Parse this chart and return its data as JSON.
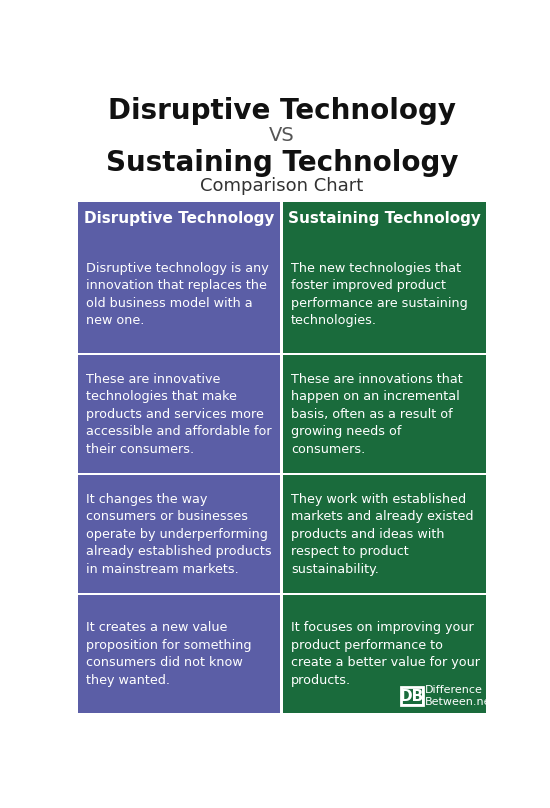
{
  "title_line1": "Disruptive Technology",
  "title_vs": "VS",
  "title_line2": "Sustaining Technology",
  "subtitle": "Comparison Chart",
  "col1_header": "Disruptive Technology",
  "col2_header": "Sustaining Technology",
  "col1_color": "#5b5ea6",
  "col2_color": "#1a6b3c",
  "header_text_color": "#ffffff",
  "body_text_color": "#ffffff",
  "bg_color": "#ffffff",
  "title_color": "#111111",
  "vs_color": "#555555",
  "subtitle_color": "#333333",
  "divider_color": "#ffffff",
  "rows": [
    {
      "left": "Disruptive technology is any\ninnovation that replaces the\nold business model with a\nnew one.",
      "right": "The new technologies that\nfoster improved product\nperformance are sustaining\ntechnologies."
    },
    {
      "left": "These are innovative\ntechnologies that make\nproducts and services more\naccessible and affordable for\ntheir consumers.",
      "right": "These are innovations that\nhappen on an incremental\nbasis, often as a result of\ngrowing needs of\nconsumers."
    },
    {
      "left": "It changes the way\nconsumers or businesses\noperate by underperforming\nalready established products\nin mainstream markets.",
      "right": "They work with established\nmarkets and already existed\nproducts and ideas with\nrespect to product\nsustainability."
    },
    {
      "left": "It creates a new value\nproposition for something\nconsumers did not know\nthey wanted.",
      "right": "It focuses on improving your\nproduct performance to\ncreate a better value for your\nproducts."
    }
  ],
  "logo_text1": "DB",
  "logo_text2": "Difference\nBetween.net",
  "fig_width": 5.5,
  "fig_height": 8.08,
  "dpi": 100
}
